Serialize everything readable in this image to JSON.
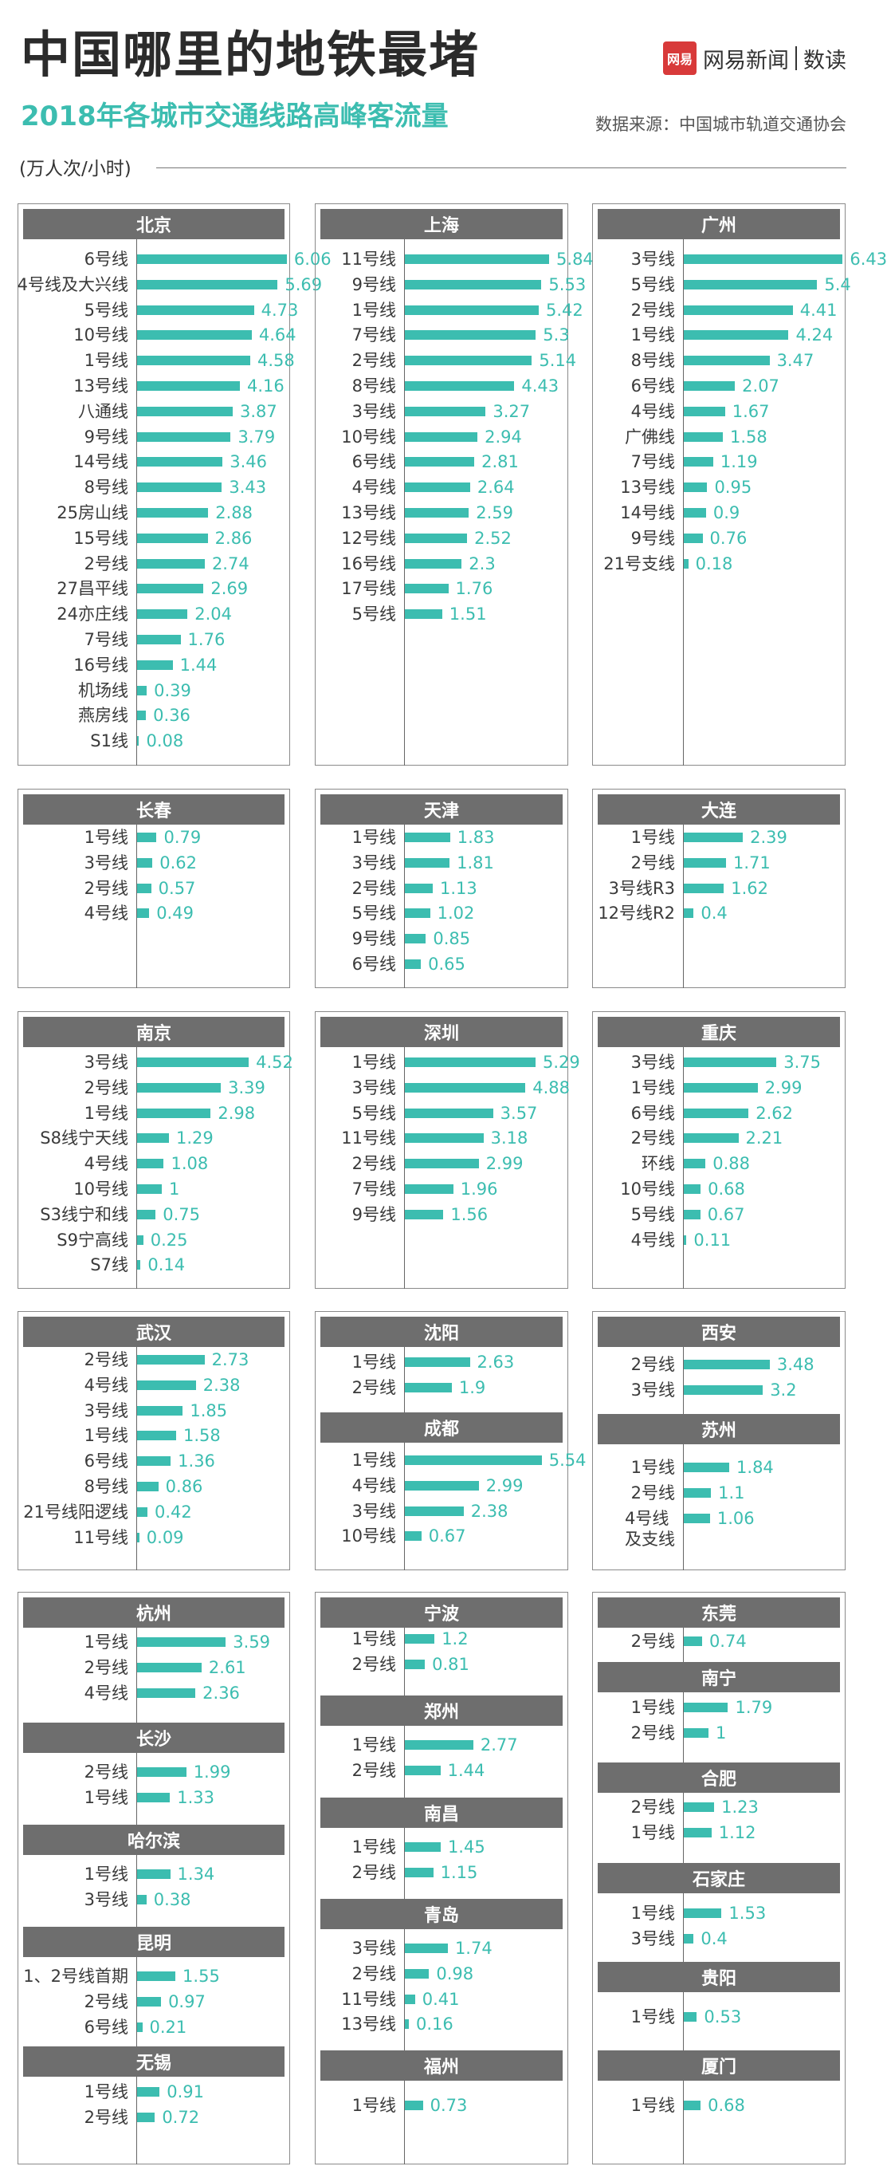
{
  "header": {
    "title": "中国哪里的地铁最堵",
    "subtitle": "2018年各城市交通线路高峰客流量",
    "source": "数据来源：中国城市轨道交通协会",
    "unit": "(万人次/小时)",
    "brand_logo": "网易",
    "brand_name": "网易新闻",
    "brand_section": "数读"
  },
  "colors": {
    "bar": "#3cbdb0",
    "header_bg": "#6e6e6e",
    "title": "#2b2b2b"
  },
  "chart_data": [
    {
      "type": "bar",
      "city": "北京",
      "categories": [
        "6号线",
        "4号线及大兴线",
        "5号线",
        "10号线",
        "1号线",
        "13号线",
        "八通线",
        "9号线",
        "14号线",
        "8号线",
        "25房山线",
        "15号线",
        "2号线",
        "27昌平线",
        "24亦庄线",
        "7号线",
        "16号线",
        "机场线",
        "燕房线",
        "S1线"
      ],
      "values": [
        6.06,
        5.69,
        4.73,
        4.64,
        4.58,
        4.16,
        3.87,
        3.79,
        3.46,
        3.43,
        2.88,
        2.86,
        2.74,
        2.69,
        2.04,
        1.76,
        1.44,
        0.39,
        0.36,
        0.08
      ]
    },
    {
      "type": "bar",
      "city": "上海",
      "categories": [
        "11号线",
        "9号线",
        "1号线",
        "7号线",
        "2号线",
        "8号线",
        "3号线",
        "10号线",
        "6号线",
        "4号线",
        "13号线",
        "12号线",
        "16号线",
        "17号线",
        "5号线"
      ],
      "values": [
        5.84,
        5.53,
        5.42,
        5.3,
        5.14,
        4.43,
        3.27,
        2.94,
        2.81,
        2.64,
        2.59,
        2.52,
        2.3,
        1.76,
        1.51
      ]
    },
    {
      "type": "bar",
      "city": "广州",
      "categories": [
        "3号线",
        "5号线",
        "2号线",
        "1号线",
        "8号线",
        "6号线",
        "4号线",
        "广佛线",
        "7号线",
        "13号线",
        "14号线",
        "9号线",
        "21号支线"
      ],
      "values": [
        6.43,
        5.4,
        4.41,
        4.24,
        3.47,
        2.07,
        1.67,
        1.58,
        1.19,
        0.95,
        0.9,
        0.76,
        0.18
      ]
    },
    {
      "type": "bar",
      "city": "长春",
      "categories": [
        "1号线",
        "3号线",
        "2号线",
        "4号线"
      ],
      "values": [
        0.79,
        0.62,
        0.57,
        0.49
      ]
    },
    {
      "type": "bar",
      "city": "天津",
      "categories": [
        "1号线",
        "3号线",
        "2号线",
        "5号线",
        "9号线",
        "6号线"
      ],
      "values": [
        1.83,
        1.81,
        1.13,
        1.02,
        0.85,
        0.65
      ]
    },
    {
      "type": "bar",
      "city": "大连",
      "categories": [
        "1号线",
        "2号线",
        "3号线R3",
        "12号线R2"
      ],
      "values": [
        2.39,
        1.71,
        1.62,
        0.4
      ]
    },
    {
      "type": "bar",
      "city": "南京",
      "categories": [
        "3号线",
        "2号线",
        "1号线",
        "S8线宁天线",
        "4号线",
        "10号线",
        "S3线宁和线",
        "S9宁高线",
        "S7线"
      ],
      "values": [
        4.52,
        3.39,
        2.98,
        1.29,
        1.08,
        1,
        0.75,
        0.25,
        0.14
      ]
    },
    {
      "type": "bar",
      "city": "深圳",
      "categories": [
        "1号线",
        "3号线",
        "5号线",
        "11号线",
        "2号线",
        "7号线",
        "9号线"
      ],
      "values": [
        5.29,
        4.88,
        3.57,
        3.18,
        2.99,
        1.96,
        1.56
      ]
    },
    {
      "type": "bar",
      "city": "重庆",
      "categories": [
        "3号线",
        "1号线",
        "6号线",
        "2号线",
        "环线",
        "10号线",
        "5号线",
        "4号线"
      ],
      "values": [
        3.75,
        2.99,
        2.62,
        2.21,
        0.88,
        0.68,
        0.67,
        0.11
      ]
    },
    {
      "type": "bar",
      "city": "武汉",
      "categories": [
        "2号线",
        "4号线",
        "3号线",
        "1号线",
        "6号线",
        "8号线",
        "21号线阳逻线",
        "11号线"
      ],
      "values": [
        2.73,
        2.38,
        1.85,
        1.58,
        1.36,
        0.86,
        0.42,
        0.09
      ]
    },
    {
      "type": "bar",
      "city": "沈阳",
      "categories": [
        "1号线",
        "2号线"
      ],
      "values": [
        2.63,
        1.9
      ]
    },
    {
      "type": "bar",
      "city": "成都",
      "categories": [
        "1号线",
        "4号线",
        "3号线",
        "10号线"
      ],
      "values": [
        5.54,
        2.99,
        2.38,
        0.67
      ]
    },
    {
      "type": "bar",
      "city": "西安",
      "categories": [
        "2号线",
        "3号线"
      ],
      "values": [
        3.48,
        3.2
      ]
    },
    {
      "type": "bar",
      "city": "苏州",
      "categories": [
        "1号线",
        "2号线",
        "4号线及支线"
      ],
      "values": [
        1.84,
        1.1,
        1.06
      ]
    },
    {
      "type": "bar",
      "city": "杭州",
      "categories": [
        "1号线",
        "2号线",
        "4号线"
      ],
      "values": [
        3.59,
        2.61,
        2.36
      ]
    },
    {
      "type": "bar",
      "city": "长沙",
      "categories": [
        "2号线",
        "1号线"
      ],
      "values": [
        1.99,
        1.33
      ]
    },
    {
      "type": "bar",
      "city": "哈尔滨",
      "categories": [
        "1号线",
        "3号线"
      ],
      "values": [
        1.34,
        0.38
      ]
    },
    {
      "type": "bar",
      "city": "昆明",
      "categories": [
        "1、2号线首期",
        "2号线",
        "6号线"
      ],
      "values": [
        1.55,
        0.97,
        0.21
      ]
    },
    {
      "type": "bar",
      "city": "无锡",
      "categories": [
        "1号线",
        "2号线"
      ],
      "values": [
        0.91,
        0.72
      ]
    },
    {
      "type": "bar",
      "city": "宁波",
      "categories": [
        "1号线",
        "2号线"
      ],
      "values": [
        1.2,
        0.81
      ]
    },
    {
      "type": "bar",
      "city": "郑州",
      "categories": [
        "1号线",
        "2号线"
      ],
      "values": [
        2.77,
        1.44
      ]
    },
    {
      "type": "bar",
      "city": "南昌",
      "categories": [
        "1号线",
        "2号线"
      ],
      "values": [
        1.45,
        1.15
      ]
    },
    {
      "type": "bar",
      "city": "青岛",
      "categories": [
        "3号线",
        "2号线",
        "11号线",
        "13号线"
      ],
      "values": [
        1.74,
        0.98,
        0.41,
        0.16
      ]
    },
    {
      "type": "bar",
      "city": "福州",
      "categories": [
        "1号线"
      ],
      "values": [
        0.73
      ]
    },
    {
      "type": "bar",
      "city": "东莞",
      "categories": [
        "2号线"
      ],
      "values": [
        0.74
      ]
    },
    {
      "type": "bar",
      "city": "南宁",
      "categories": [
        "1号线",
        "2号线"
      ],
      "values": [
        1.79,
        1
      ]
    },
    {
      "type": "bar",
      "city": "合肥",
      "categories": [
        "2号线",
        "1号线"
      ],
      "values": [
        1.23,
        1.12
      ]
    },
    {
      "type": "bar",
      "city": "石家庄",
      "categories": [
        "1号线",
        "3号线"
      ],
      "values": [
        1.53,
        0.4
      ]
    },
    {
      "type": "bar",
      "city": "贵阳",
      "categories": [
        "1号线"
      ],
      "values": [
        0.53
      ]
    },
    {
      "type": "bar",
      "city": "厦门",
      "categories": [
        "1号线"
      ],
      "values": [
        0.68
      ]
    }
  ]
}
